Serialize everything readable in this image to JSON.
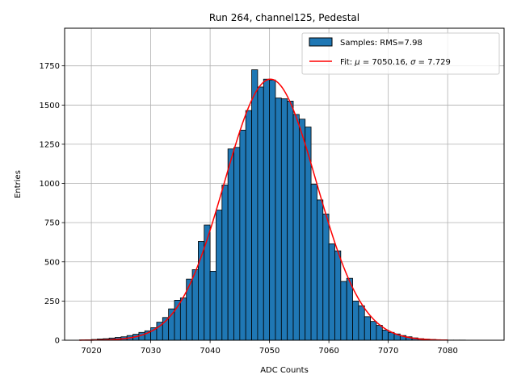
{
  "chart_data": {
    "type": "bar",
    "title": "Run 264, channel125, Pedestal",
    "xlabel": "ADC Counts",
    "ylabel": "Entries",
    "xlim": [
      7015.5,
      7089.5
    ],
    "ylim": [
      0,
      1990
    ],
    "xticks": [
      7020,
      7030,
      7040,
      7050,
      7060,
      7070,
      7080
    ],
    "yticks": [
      0,
      250,
      500,
      750,
      1000,
      1250,
      1500,
      1750
    ],
    "grid": true,
    "legend_position": "top-right",
    "colors": {
      "bars": "#1f77b4",
      "bar_edge": "#000000",
      "fit": "#ff0000",
      "grid": "#b0b0b0"
    },
    "series": [
      {
        "name": "Samples: RMS=7.98",
        "type": "histogram",
        "bin_width": 1,
        "bin_starts": [
          7018,
          7019,
          7020,
          7021,
          7022,
          7023,
          7024,
          7025,
          7026,
          7027,
          7028,
          7029,
          7030,
          7031,
          7032,
          7033,
          7034,
          7035,
          7036,
          7037,
          7038,
          7039,
          7040,
          7041,
          7042,
          7043,
          7044,
          7045,
          7046,
          7047,
          7048,
          7049,
          7050,
          7051,
          7052,
          7053,
          7054,
          7055,
          7056,
          7057,
          7058,
          7059,
          7060,
          7061,
          7062,
          7063,
          7064,
          7065,
          7066,
          7067,
          7068,
          7069,
          7070,
          7071,
          7072,
          7073,
          7074,
          7075,
          7076,
          7077,
          7078,
          7079,
          7080,
          7081,
          7082,
          7083,
          7084,
          7085,
          7086
        ],
        "values": [
          2,
          3,
          5,
          8,
          10,
          14,
          18,
          22,
          30,
          38,
          50,
          60,
          80,
          115,
          145,
          200,
          255,
          270,
          390,
          450,
          630,
          735,
          440,
          830,
          990,
          1220,
          1230,
          1340,
          1465,
          1725,
          1615,
          1665,
          1660,
          1545,
          1540,
          1525,
          1440,
          1410,
          1360,
          995,
          895,
          805,
          615,
          570,
          375,
          395,
          250,
          220,
          150,
          120,
          95,
          65,
          50,
          40,
          30,
          22,
          15,
          10,
          7,
          5,
          3,
          2,
          1,
          1,
          1,
          0,
          0,
          0,
          0
        ]
      },
      {
        "name": "Fit: μ = 7050.16, σ = 7.729",
        "type": "gaussian-fit",
        "mu": 7050.16,
        "sigma": 7.729,
        "amplitude": 1665,
        "x_range": [
          7018,
          7080
        ]
      }
    ]
  },
  "legend": {
    "items": [
      {
        "label_prefix": "Samples: RMS=7.98",
        "math": "",
        "label_suffix": ""
      },
      {
        "label_prefix": "Fit: ",
        "math": "μ",
        "label_mid": " = 7050.16, ",
        "math2": "σ",
        "label_suffix": " = 7.729"
      }
    ]
  }
}
